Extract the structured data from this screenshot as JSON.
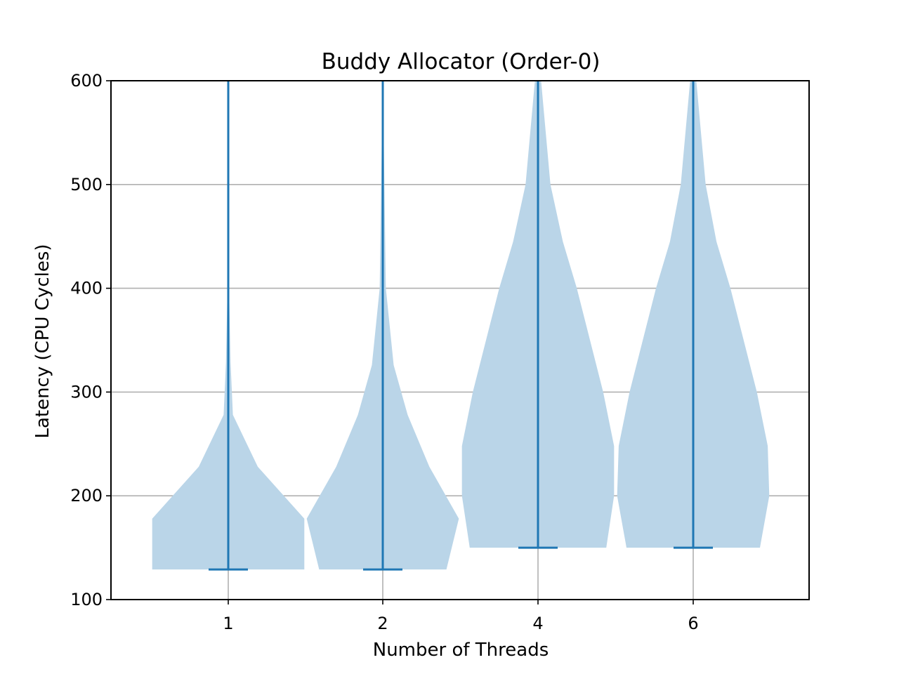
{
  "chart_data": {
    "type": "violin",
    "title": "Buddy Allocator (Order-0)",
    "xlabel": "Number of Threads",
    "ylabel": "Latency (CPU Cycles)",
    "ylim": [
      100,
      600
    ],
    "yticks": [
      100,
      200,
      300,
      400,
      500,
      600
    ],
    "grid": "horizontal and vertical at ticks",
    "categories": [
      "1",
      "2",
      "4",
      "6"
    ],
    "colors": {
      "body": "#bad5e8",
      "line": "#1f77b4",
      "grid": "#b0b0b0"
    },
    "violins": [
      {
        "category": "1",
        "min": 129,
        "profile": [
          {
            "y": 129,
            "w": 0.49
          },
          {
            "y": 178,
            "w": 0.49
          },
          {
            "y": 228,
            "w": 0.19
          },
          {
            "y": 278,
            "w": 0.03
          },
          {
            "y": 328,
            "w": 0.015
          },
          {
            "y": 400,
            "w": 0.005
          },
          {
            "y": 600,
            "w": 0.001
          }
        ]
      },
      {
        "category": "2",
        "min": 129,
        "profile": [
          {
            "y": 129,
            "w": 0.41
          },
          {
            "y": 178,
            "w": 0.49
          },
          {
            "y": 228,
            "w": 0.3
          },
          {
            "y": 278,
            "w": 0.16
          },
          {
            "y": 326,
            "w": 0.07
          },
          {
            "y": 400,
            "w": 0.02
          },
          {
            "y": 600,
            "w": 0.001
          }
        ]
      },
      {
        "category": "4",
        "min": 150,
        "profile": [
          {
            "y": 150,
            "w": 0.44
          },
          {
            "y": 200,
            "w": 0.49
          },
          {
            "y": 248,
            "w": 0.49
          },
          {
            "y": 300,
            "w": 0.42
          },
          {
            "y": 400,
            "w": 0.25
          },
          {
            "y": 445,
            "w": 0.16
          },
          {
            "y": 500,
            "w": 0.08
          },
          {
            "y": 600,
            "w": 0.02
          }
        ]
      },
      {
        "category": "6",
        "min": 150,
        "profile": [
          {
            "y": 150,
            "w": 0.43
          },
          {
            "y": 200,
            "w": 0.49
          },
          {
            "y": 248,
            "w": 0.48
          },
          {
            "y": 300,
            "w": 0.41
          },
          {
            "y": 400,
            "w": 0.24
          },
          {
            "y": 445,
            "w": 0.15
          },
          {
            "y": 500,
            "w": 0.08
          },
          {
            "y": 600,
            "w": 0.02
          }
        ]
      }
    ]
  }
}
